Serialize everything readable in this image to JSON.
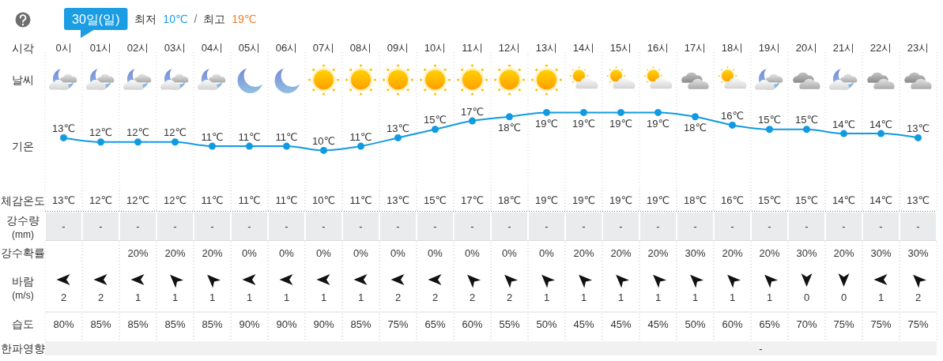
{
  "chart_data": [
    {
      "type": "line",
      "title": "30일(일)",
      "subtitle": "최저 10℃ / 최고 19℃",
      "xlabel": "시각",
      "ylabel": "기온",
      "annotations": [
        "날씨"
      ],
      "categories": [
        "0시",
        "01시",
        "02시",
        "03시",
        "04시",
        "05시",
        "06시",
        "07시",
        "08시",
        "09시",
        "10시",
        "11시",
        "12시",
        "13시",
        "14시",
        "15시",
        "16시",
        "17시",
        "18시",
        "19시",
        "20시",
        "21시",
        "22시",
        "23시"
      ],
      "series": [
        {
          "color": "#109ae2",
          "values": [
            13,
            12,
            12,
            12,
            11,
            11,
            11,
            10,
            11,
            13,
            15,
            17,
            18,
            19,
            19,
            19,
            19,
            18,
            16,
            15,
            15,
            14,
            14,
            13
          ],
          "value_labels": [
            "13℃",
            "12℃",
            "12℃",
            "12℃",
            "11℃",
            "11℃",
            "11℃",
            "10℃",
            "11℃",
            "13℃",
            "15℃",
            "17℃",
            "18℃",
            "19℃",
            "19℃",
            "19℃",
            "19℃",
            "18℃",
            "16℃",
            "15℃",
            "15℃",
            "14℃",
            "14℃",
            "13℃"
          ]
        }
      ],
      "tick_labels": "x",
      "grid": "x",
      "marker": "circle"
    },
    {
      "type": "other",
      "categories": [
        "체감온도",
        "강수량 (mm)",
        "강수확률",
        "바람 (m/s)",
        "습도",
        "한파영향"
      ]
    },
    {
      "type": "other",
      "categories": [
        "13℃",
        "-",
        null,
        "2",
        "80%",
        null
      ]
    },
    {
      "type": "other",
      "categories": [
        "12℃",
        "-",
        null,
        "2",
        "85%",
        null
      ]
    },
    {
      "type": "other",
      "categories": [
        "12℃",
        "-",
        "20%",
        "1",
        "85%",
        null
      ]
    },
    {
      "type": "other",
      "categories": [
        "12℃",
        "-",
        "20%",
        "1",
        "85%",
        null
      ]
    },
    {
      "type": "other",
      "categories": [
        "11℃",
        "-",
        "20%",
        "1",
        "85%",
        null
      ]
    },
    {
      "type": "other",
      "categories": [
        "11℃",
        "-",
        "0%",
        "1",
        "90%",
        null
      ]
    },
    {
      "type": "other",
      "categories": [
        "11℃",
        "-",
        "0%",
        "1",
        "90%",
        null
      ]
    },
    {
      "type": "other",
      "categories": [
        "10℃",
        "-",
        "0%",
        "1",
        "90%",
        null
      ]
    },
    {
      "type": "other",
      "categories": [
        "11℃",
        "-",
        "0%",
        "1",
        "85%",
        null
      ]
    },
    {
      "type": "other",
      "categories": [
        "13℃",
        "-",
        "0%",
        "2",
        "75%",
        null
      ]
    },
    {
      "type": "other",
      "categories": [
        "15℃",
        "-",
        "0%",
        "2",
        "65%",
        null
      ]
    },
    {
      "type": "other",
      "categories": [
        "17℃",
        "-",
        "0%",
        "2",
        "60%",
        null
      ]
    },
    {
      "type": "other",
      "categories": [
        "18℃",
        "-",
        "0%",
        "2",
        "55%",
        null
      ]
    },
    {
      "type": "other",
      "categories": [
        "19℃",
        "-",
        "0%",
        "1",
        "50%",
        null
      ]
    },
    {
      "type": "other",
      "categories": [
        "19℃",
        "-",
        "20%",
        "1",
        "45%",
        null
      ]
    },
    {
      "type": "other",
      "categories": [
        "19℃",
        "-",
        "20%",
        "1",
        "45%",
        null
      ]
    },
    {
      "type": "other",
      "categories": [
        "19℃",
        "-",
        "20%",
        "1",
        "45%",
        null
      ]
    },
    {
      "type": "other",
      "categories": [
        "18℃",
        "-",
        "30%",
        "1",
        "50%",
        null
      ]
    },
    {
      "type": "other",
      "categories": [
        "16℃",
        "-",
        "20%",
        "1",
        "60%",
        null
      ]
    },
    {
      "type": "other",
      "categories": [
        "15℃",
        "-",
        "20%",
        "1",
        "65%",
        "-"
      ]
    },
    {
      "type": "other",
      "categories": [
        "15℃",
        "-",
        "30%",
        "0",
        "70%",
        null
      ]
    },
    {
      "type": "other",
      "categories": [
        "14℃",
        "-",
        "20%",
        "0",
        "75%",
        null
      ]
    },
    {
      "type": "other",
      "categories": [
        "14℃",
        "-",
        "30%",
        "1",
        "75%",
        null
      ]
    },
    {
      "type": "other",
      "categories": [
        "13℃",
        "-",
        "30%",
        "2",
        "75%",
        null
      ]
    }
  ]
}
